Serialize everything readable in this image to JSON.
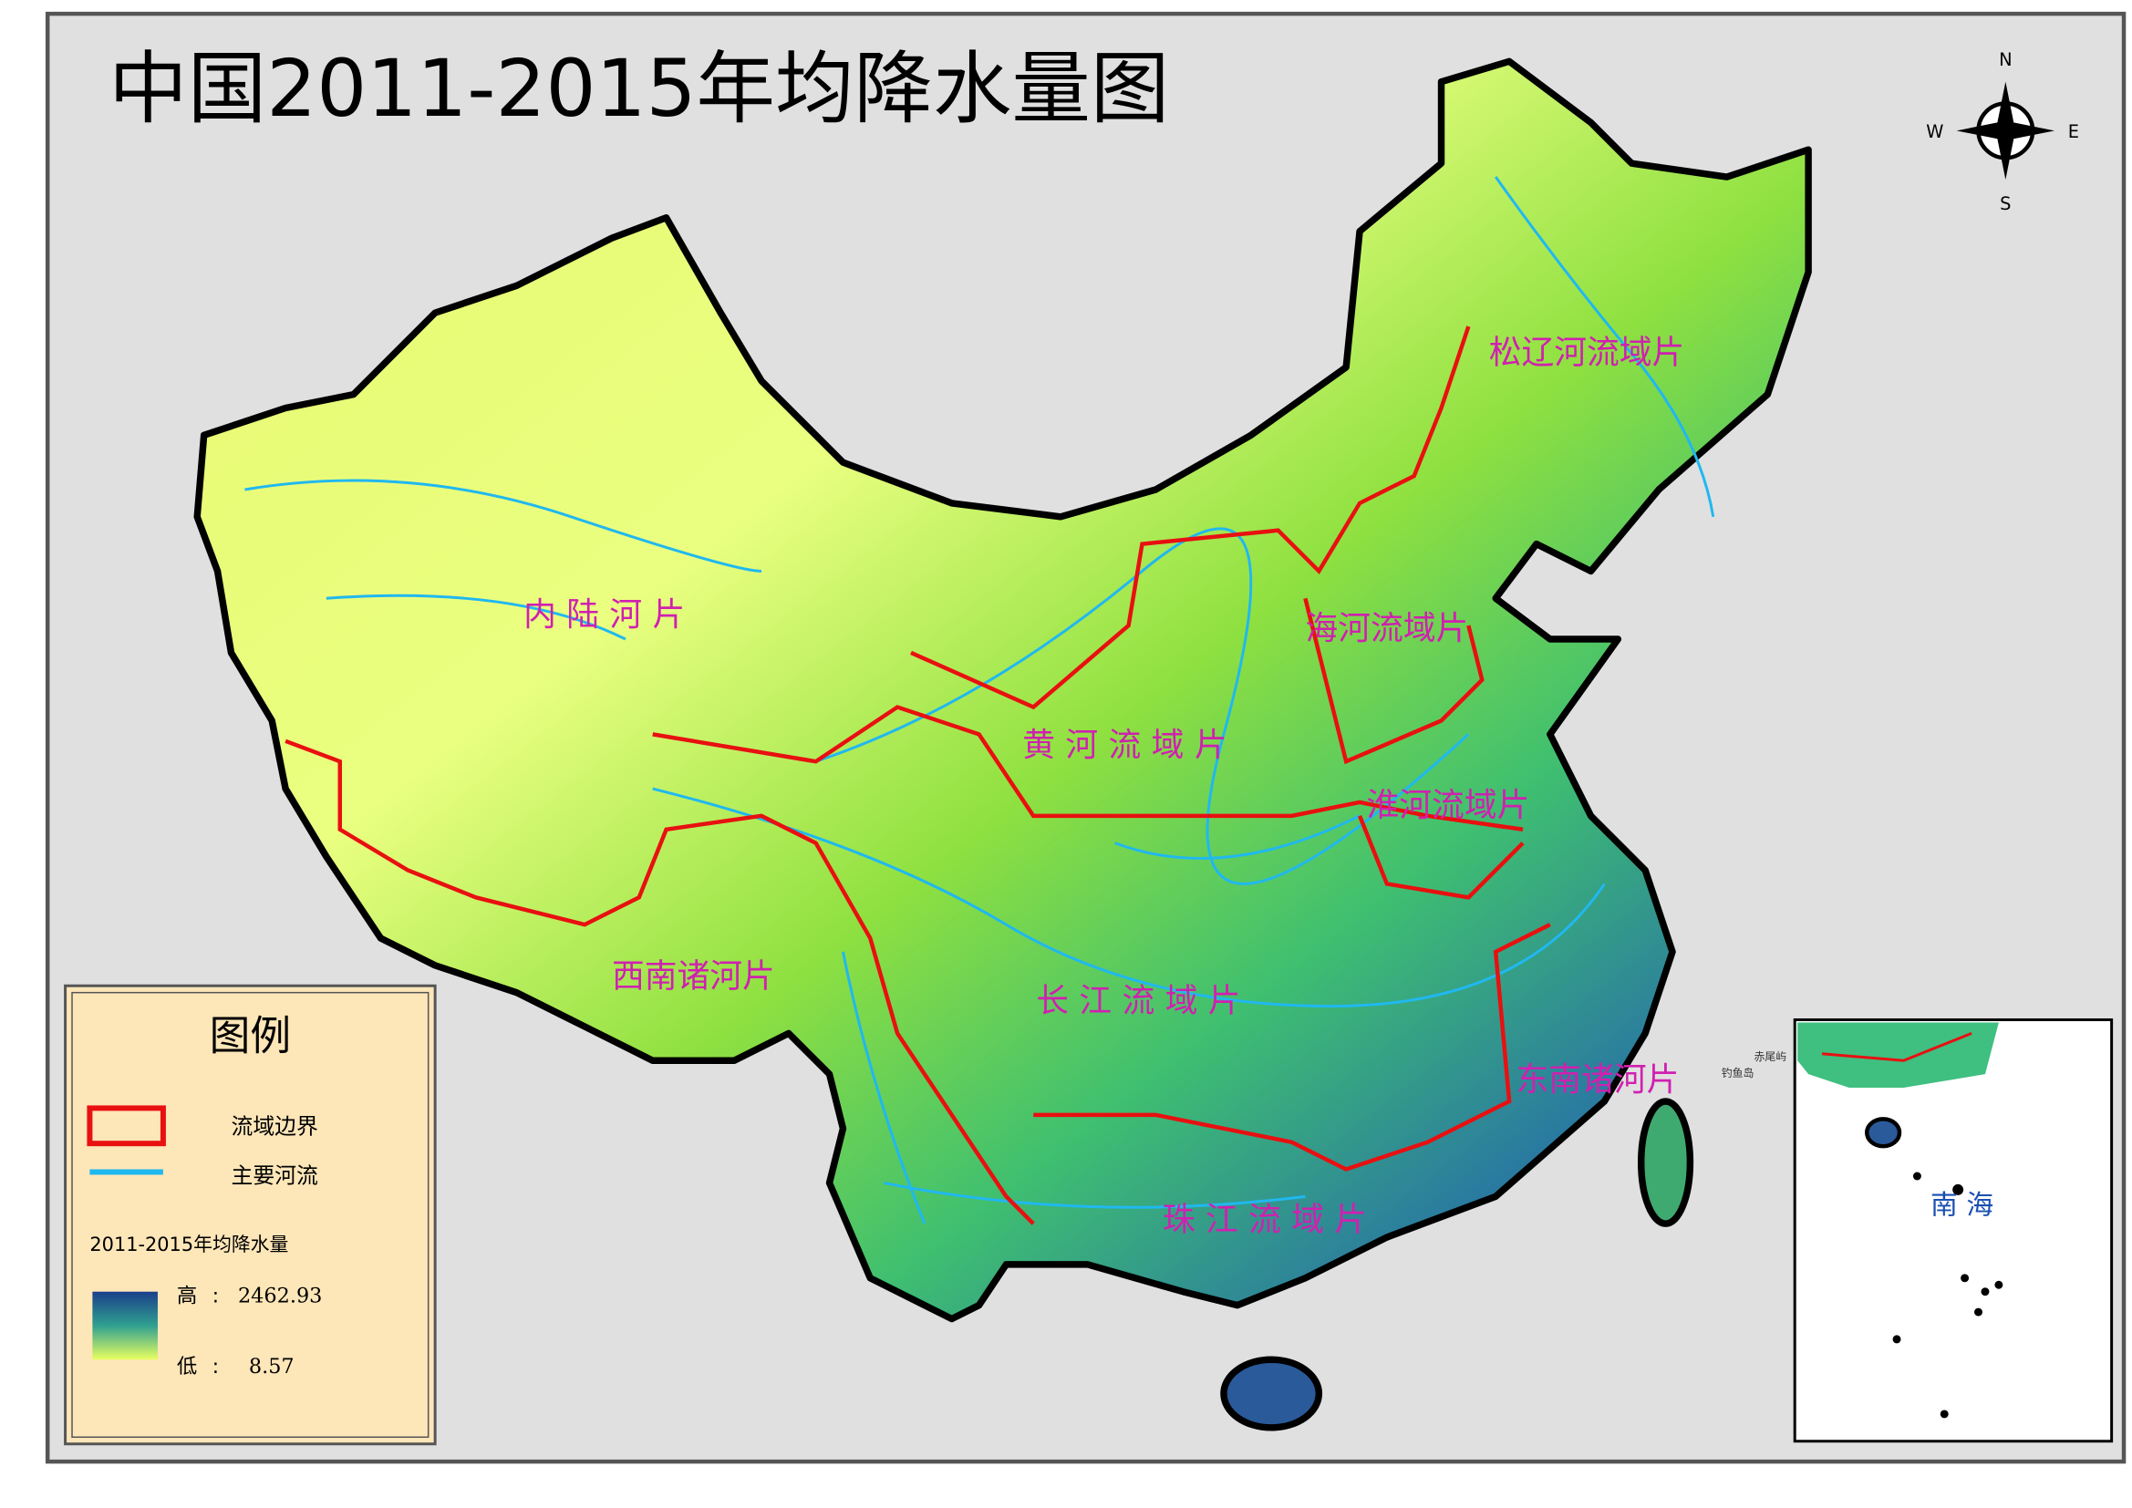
{
  "title": "中国2011-2015年均降水量图",
  "compass": {
    "n": "N",
    "s": "S",
    "w": "W",
    "e": "E"
  },
  "regions": [
    "内 陆 河 片",
    "松辽河流域片",
    "海河流域片",
    "黄 河 流 域 片",
    "淮河流域片",
    "西南诸河片",
    "长 江 流 域 片",
    "东南诸河片",
    "珠 江 流 域 片"
  ],
  "legend": {
    "title": "图例",
    "items": [
      "流域边界",
      "主要河流"
    ],
    "scale_title": "2011-2015年均降水量",
    "high": {
      "label": "高",
      "value": 2462.93
    },
    "low": {
      "label": "低",
      "value": 8.57
    },
    "separator": ":"
  },
  "inset": {
    "label": "南 海",
    "islands": [
      "赤尾屿",
      "钓鱼岛"
    ]
  }
}
